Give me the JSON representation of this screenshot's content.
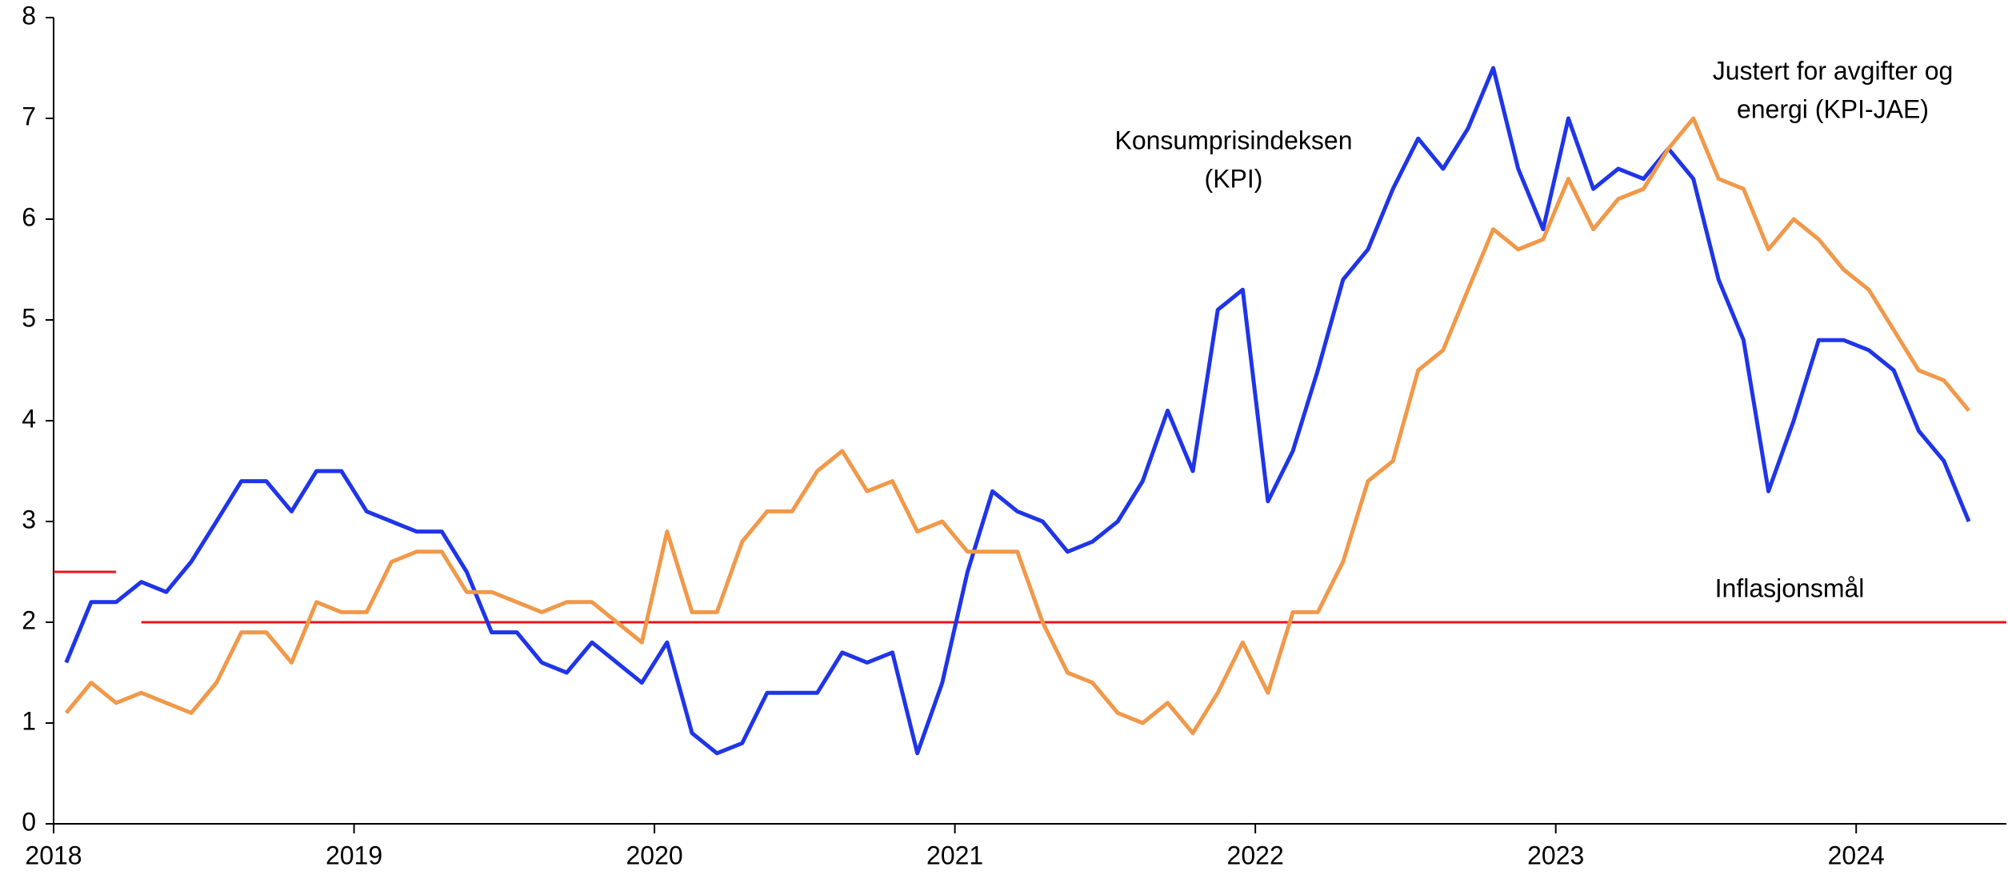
{
  "chart_data": {
    "type": "line",
    "x": [
      2018.042,
      2018.125,
      2018.208,
      2018.292,
      2018.375,
      2018.458,
      2018.542,
      2018.625,
      2018.708,
      2018.792,
      2018.875,
      2018.958,
      2019.042,
      2019.125,
      2019.208,
      2019.292,
      2019.375,
      2019.458,
      2019.542,
      2019.625,
      2019.708,
      2019.792,
      2019.875,
      2019.958,
      2020.042,
      2020.125,
      2020.208,
      2020.292,
      2020.375,
      2020.458,
      2020.542,
      2020.625,
      2020.708,
      2020.792,
      2020.875,
      2020.958,
      2021.042,
      2021.125,
      2021.208,
      2021.292,
      2021.375,
      2021.458,
      2021.542,
      2021.625,
      2021.708,
      2021.792,
      2021.875,
      2021.958,
      2022.042,
      2022.125,
      2022.208,
      2022.292,
      2022.375,
      2022.458,
      2022.542,
      2022.625,
      2022.708,
      2022.792,
      2022.875,
      2022.958,
      2023.042,
      2023.125,
      2023.208,
      2023.292,
      2023.375,
      2023.458,
      2023.542,
      2023.625,
      2023.708,
      2023.792,
      2023.875,
      2023.958,
      2024.042,
      2024.125,
      2024.208,
      2024.292,
      2024.375
    ],
    "series": [
      {
        "name": [
          "Konsumprisindeksen",
          "(KPI)"
        ],
        "color": "#1f35e8",
        "values": [
          1.6,
          2.2,
          2.2,
          2.4,
          2.3,
          2.6,
          3.0,
          3.4,
          3.4,
          3.1,
          3.5,
          3.5,
          3.1,
          3.0,
          2.9,
          2.9,
          2.5,
          1.9,
          1.9,
          1.6,
          1.5,
          1.8,
          1.6,
          1.4,
          1.8,
          0.9,
          0.7,
          0.8,
          1.3,
          1.3,
          1.3,
          1.7,
          1.6,
          1.7,
          0.7,
          1.4,
          2.5,
          3.3,
          3.1,
          3.0,
          2.7,
          2.8,
          3.0,
          3.4,
          4.1,
          3.5,
          5.1,
          5.3,
          3.2,
          3.7,
          4.5,
          5.4,
          5.7,
          6.3,
          6.8,
          6.5,
          6.9,
          7.5,
          6.5,
          5.9,
          7.0,
          6.3,
          6.5,
          6.4,
          6.7,
          6.4,
          5.4,
          4.8,
          3.3,
          4.0,
          4.8,
          4.8,
          4.7,
          4.5,
          3.9,
          3.6,
          3.0
        ]
      },
      {
        "name": [
          "Justert for avgifter og",
          "energi (KPI-JAE)"
        ],
        "color": "#f0994a",
        "values": [
          1.1,
          1.4,
          1.2,
          1.3,
          1.2,
          1.1,
          1.4,
          1.9,
          1.9,
          1.6,
          2.2,
          2.1,
          2.1,
          2.6,
          2.7,
          2.7,
          2.3,
          2.3,
          2.2,
          2.1,
          2.2,
          2.2,
          2.0,
          1.8,
          2.9,
          2.1,
          2.1,
          2.8,
          3.1,
          3.1,
          3.5,
          3.7,
          3.3,
          3.4,
          2.9,
          3.0,
          2.7,
          2.7,
          2.7,
          2.0,
          1.5,
          1.4,
          1.1,
          1.0,
          1.2,
          0.9,
          1.3,
          1.8,
          1.3,
          2.1,
          2.1,
          2.6,
          3.4,
          3.6,
          4.5,
          4.7,
          5.3,
          5.9,
          5.7,
          5.8,
          6.4,
          5.9,
          6.2,
          6.3,
          6.7,
          7.0,
          6.4,
          6.3,
          5.7,
          6.0,
          5.8,
          5.5,
          5.3,
          4.9,
          4.5,
          4.4,
          4.1
        ]
      }
    ],
    "target": {
      "label": "Inflasjonsmål",
      "color": "#e8141b",
      "lines": [
        {
          "x": [
            2018,
            2018.208
          ],
          "values": [
            2.5,
            2.5
          ]
        },
        {
          "x": [
            2018.292,
            2024.5
          ],
          "values": [
            2,
            2
          ]
        }
      ]
    },
    "xlim": [
      2018,
      2024.5
    ],
    "xticks": [
      2018,
      2019,
      2020,
      2021,
      2022,
      2023,
      2024
    ],
    "ylim": [
      0,
      8
    ],
    "yticks": [
      0,
      1,
      2,
      3,
      4,
      5,
      6,
      7,
      8
    ],
    "grid": false
  }
}
